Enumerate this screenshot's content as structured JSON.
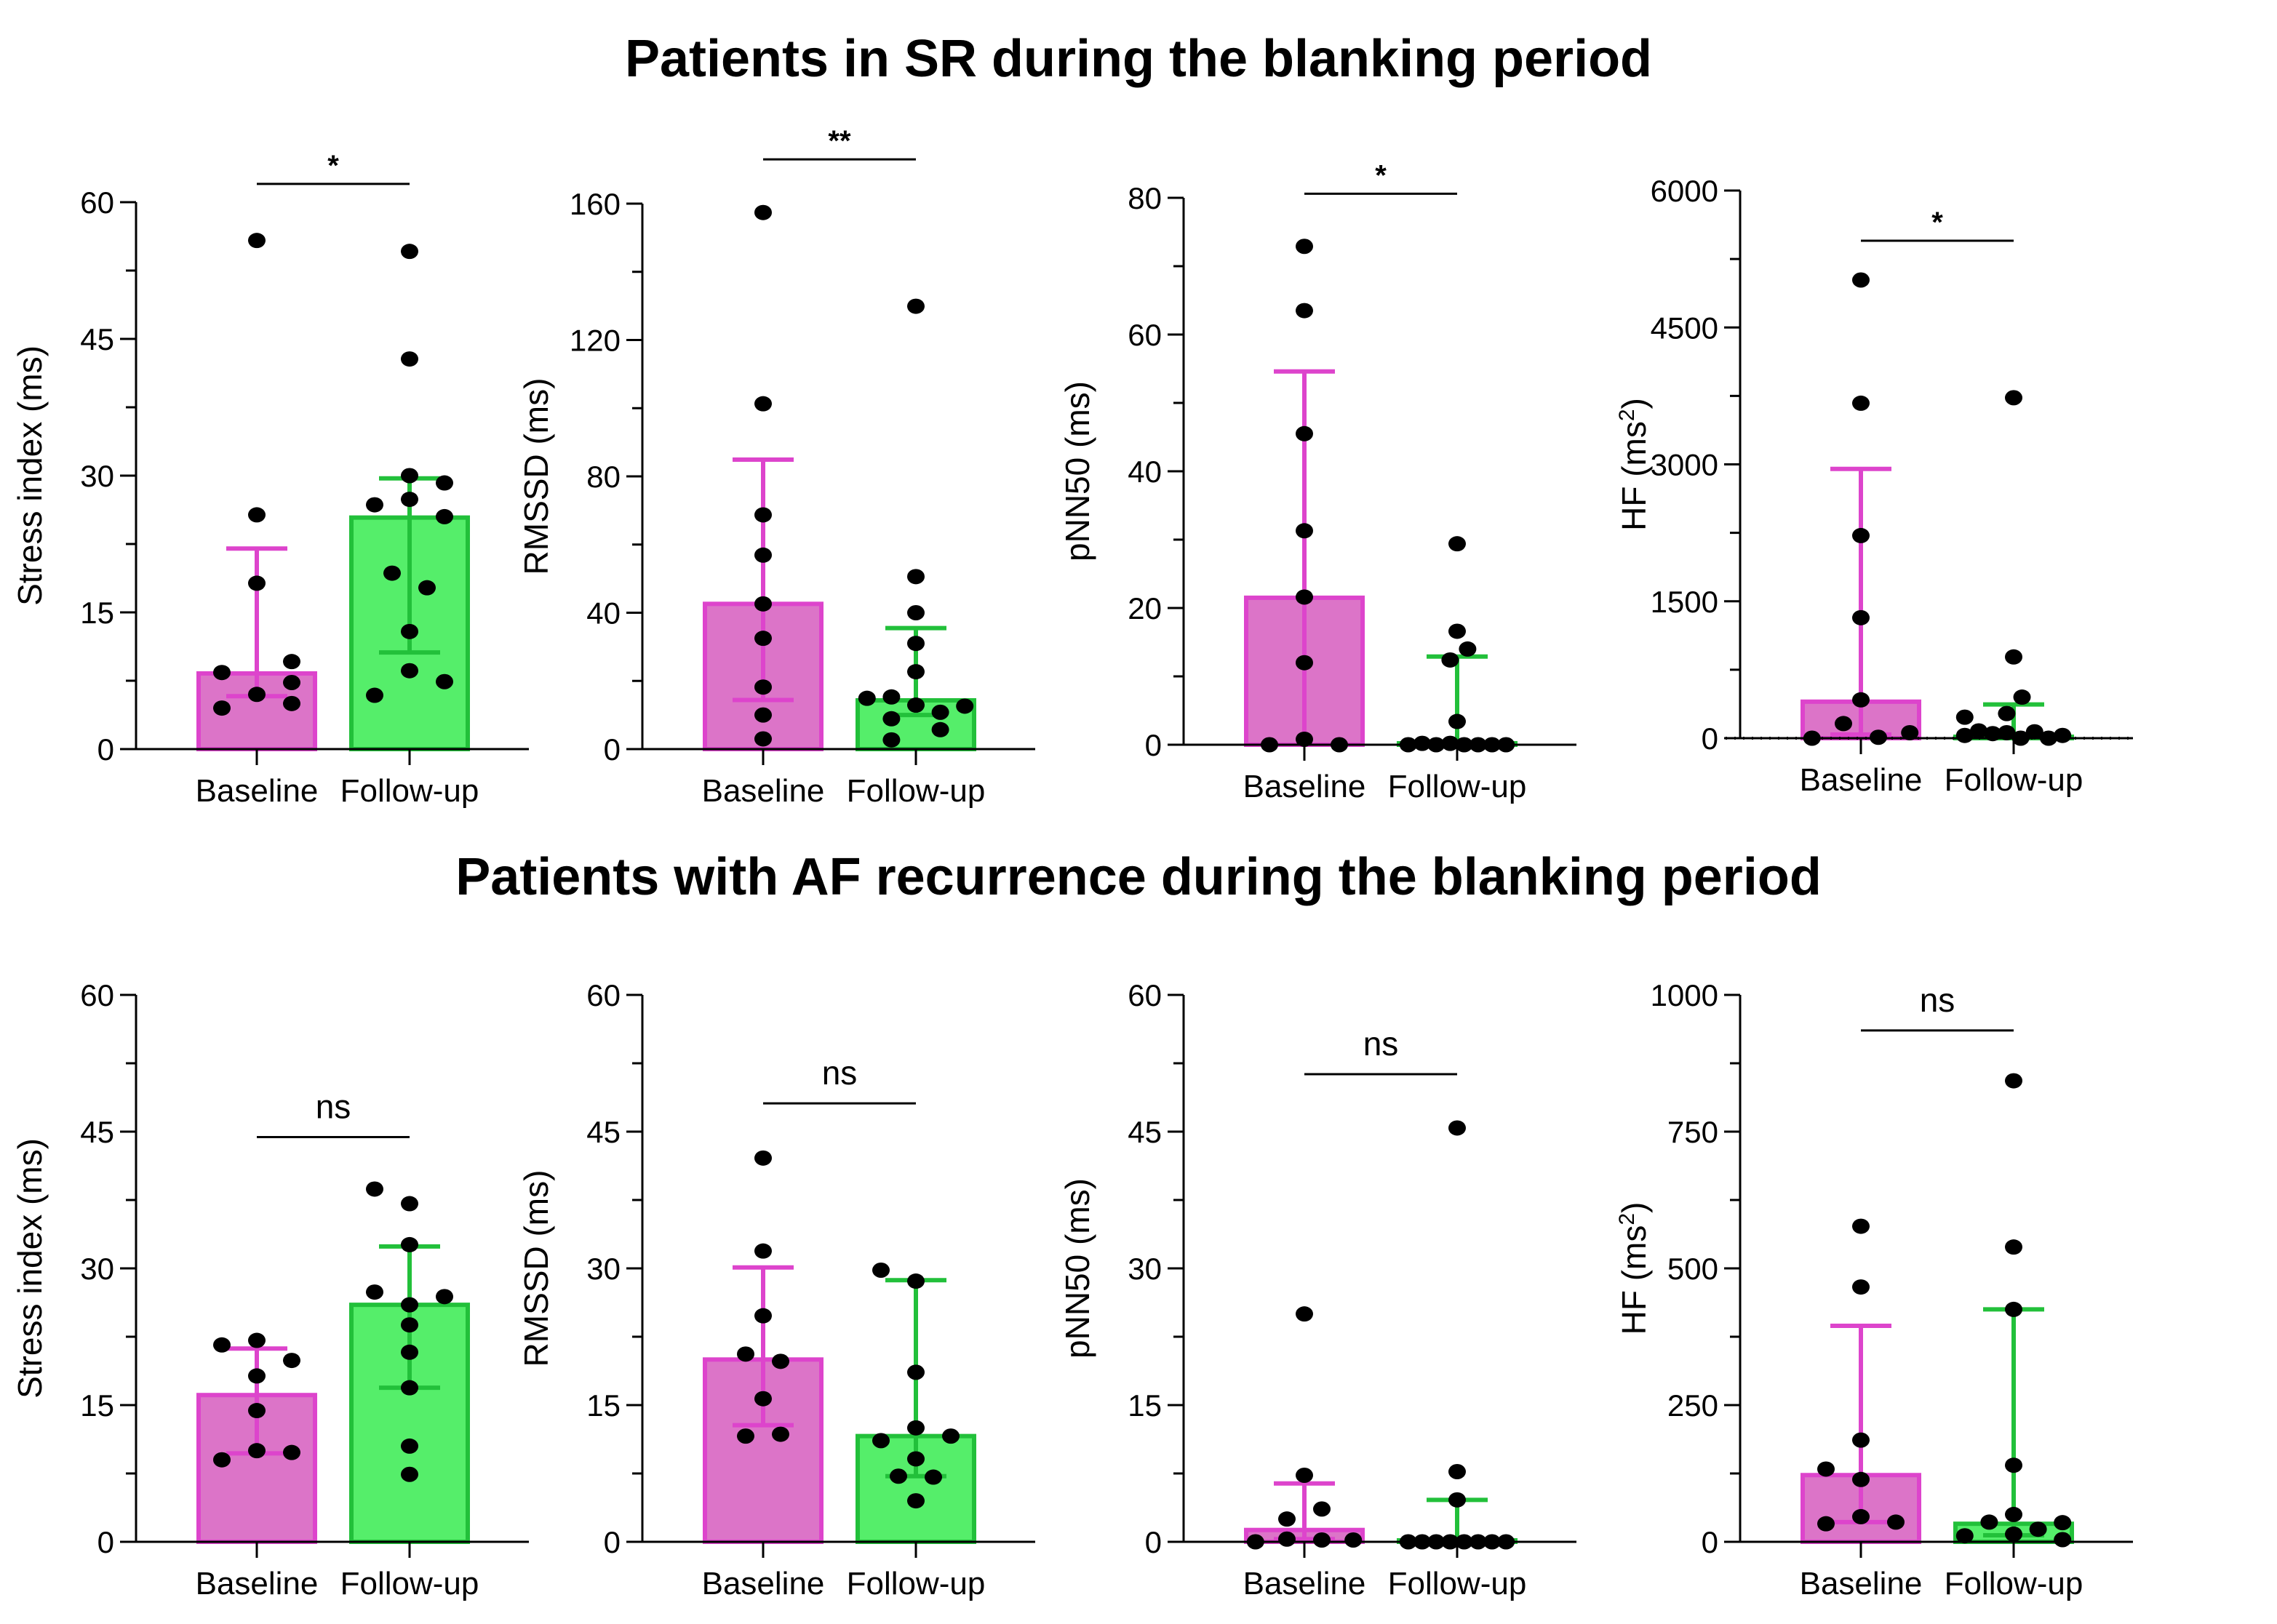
{
  "figure": {
    "row_titles": [
      "Patients in SR during the blanking period",
      "Patients with AF recurrence during the blanking period"
    ],
    "colors": {
      "baseline_fill": "#DC74C8",
      "baseline_stroke": "#DD44CC",
      "followup_fill": "#55EE6A",
      "followup_stroke": "#22C03A",
      "point": "#000000"
    }
  },
  "chart_data": [
    {
      "type": "bar",
      "row": 0,
      "title": "Patients in SR during the blanking period",
      "categories": [
        "Baseline",
        "Follow-up"
      ],
      "ylabel": "Stress index (ms)",
      "ylabel_sup": "",
      "ylim": [
        0,
        60
      ],
      "yticks": [
        0,
        15,
        30,
        45,
        60
      ],
      "minor_step": 7.5,
      "grid": false,
      "significance": "*",
      "sig_y": 62,
      "series": [
        {
          "name": "Baseline",
          "bar": 8.3,
          "err_low": 5.8,
          "err_high": 22.0,
          "points": [
            [
              0,
              55.8
            ],
            [
              0,
              25.7
            ],
            [
              0,
              18.2
            ],
            [
              -0.5,
              8.4
            ],
            [
              0.5,
              9.6
            ],
            [
              -0.5,
              4.5
            ],
            [
              0,
              6.0
            ],
            [
              0.5,
              7.3
            ],
            [
              0.5,
              5.0
            ]
          ]
        },
        {
          "name": "Follow-up",
          "bar": 25.4,
          "err_low": 10.6,
          "err_high": 29.7,
          "points": [
            [
              0,
              54.6
            ],
            [
              0,
              42.8
            ],
            [
              0,
              30.0
            ],
            [
              0.5,
              29.2
            ],
            [
              -0.5,
              26.8
            ],
            [
              0,
              27.4
            ],
            [
              0.5,
              25.5
            ],
            [
              -0.25,
              19.3
            ],
            [
              0.25,
              17.7
            ],
            [
              0,
              12.9
            ],
            [
              0,
              8.6
            ],
            [
              0.5,
              7.4
            ],
            [
              -0.5,
              5.9
            ]
          ]
        }
      ]
    },
    {
      "type": "bar",
      "row": 0,
      "title": "Patients in SR during the blanking period",
      "categories": [
        "Baseline",
        "Follow-up"
      ],
      "ylabel": "RMSSD (ms)",
      "ylabel_sup": "",
      "ylim": [
        0,
        160
      ],
      "yticks": [
        0,
        40,
        80,
        120,
        160
      ],
      "minor_step": 20,
      "grid": false,
      "significance": "**",
      "sig_y": 173,
      "series": [
        {
          "name": "Baseline",
          "bar": 42.6,
          "err_low": 14.4,
          "err_high": 84.9,
          "points": [
            [
              0,
              157.4
            ],
            [
              0,
              101.3
            ],
            [
              0,
              68.7
            ],
            [
              0,
              56.9
            ],
            [
              0,
              42.6
            ],
            [
              0,
              32.5
            ],
            [
              0,
              18.2
            ],
            [
              0,
              10.0
            ],
            [
              0,
              3.0
            ]
          ]
        },
        {
          "name": "Follow-up",
          "bar": 14.3,
          "err_low": 10.0,
          "err_high": 35.5,
          "points": [
            [
              0,
              129.9
            ],
            [
              0,
              50.6
            ],
            [
              0,
              40.0
            ],
            [
              0,
              31.0
            ],
            [
              0,
              22.7
            ],
            [
              -0.7,
              14.9
            ],
            [
              -0.35,
              15.3
            ],
            [
              0,
              12.9
            ],
            [
              0.35,
              10.8
            ],
            [
              0.7,
              12.6
            ],
            [
              -0.35,
              8.9
            ],
            [
              0.35,
              5.7
            ],
            [
              -0.35,
              2.7
            ]
          ]
        }
      ]
    },
    {
      "type": "bar",
      "row": 0,
      "title": "Patients in SR during the blanking period",
      "categories": [
        "Baseline",
        "Follow-up"
      ],
      "ylabel": "pNN50 (ms)",
      "ylabel_sup": "",
      "ylim": [
        0,
        80
      ],
      "yticks": [
        0,
        20,
        40,
        60,
        80
      ],
      "minor_step": 10,
      "grid": false,
      "significance": "*",
      "sig_y": 80.6,
      "series": [
        {
          "name": "Baseline",
          "bar": 21.5,
          "err_low": 0.0,
          "err_high": 54.6,
          "points": [
            [
              0,
              72.9
            ],
            [
              0,
              63.5
            ],
            [
              0,
              45.5
            ],
            [
              0,
              31.3
            ],
            [
              0,
              21.6
            ],
            [
              0,
              12.0
            ],
            [
              0,
              0.8
            ],
            [
              -0.5,
              0.0
            ],
            [
              0.5,
              0.0
            ]
          ]
        },
        {
          "name": "Follow-up",
          "bar": 0.0,
          "err_low": 0.0,
          "err_high": 12.9,
          "points": [
            [
              0,
              29.4
            ],
            [
              0,
              16.6
            ],
            [
              0.15,
              14.0
            ],
            [
              -0.1,
              12.4
            ],
            [
              0,
              3.4
            ],
            [
              -0.7,
              0.0
            ],
            [
              -0.5,
              0.2
            ],
            [
              -0.3,
              0.0
            ],
            [
              -0.1,
              0.2
            ],
            [
              0.1,
              0.0
            ],
            [
              0.3,
              0.0
            ],
            [
              0.5,
              0.0
            ],
            [
              0.7,
              0.0
            ]
          ]
        }
      ]
    },
    {
      "type": "bar",
      "row": 0,
      "title": "Patients in SR during the blanking period",
      "categories": [
        "Baseline",
        "Follow-up"
      ],
      "ylabel": "HF (ms",
      "ylabel_sup": "2",
      "ylabel_tail": ")",
      "ylim": [
        0,
        6000
      ],
      "yticks": [
        0,
        1500,
        3000,
        4500,
        6000
      ],
      "minor_step": 750,
      "grid": false,
      "zero_dotted": true,
      "significance": "*",
      "sig_y": 5450,
      "series": [
        {
          "name": "Baseline",
          "bar": 400,
          "err_low": 40,
          "err_high": 2950,
          "points": [
            [
              0,
              5020
            ],
            [
              0,
              3670
            ],
            [
              0,
              2220
            ],
            [
              0,
              1320
            ],
            [
              0,
              420
            ],
            [
              -0.25,
              160
            ],
            [
              -0.7,
              0
            ],
            [
              0.25,
              10
            ],
            [
              0.7,
              60
            ]
          ]
        },
        {
          "name": "Follow-up",
          "bar": 0,
          "err_low": 0,
          "err_high": 370,
          "points": [
            [
              0,
              3730
            ],
            [
              0,
              890
            ],
            [
              0.12,
              450
            ],
            [
              -0.1,
              270
            ],
            [
              -0.7,
              230
            ],
            [
              -0.7,
              30
            ],
            [
              -0.5,
              80
            ],
            [
              -0.3,
              50
            ],
            [
              -0.1,
              60
            ],
            [
              0.1,
              0
            ],
            [
              0.3,
              70
            ],
            [
              0.5,
              0
            ],
            [
              0.7,
              30
            ]
          ]
        }
      ]
    },
    {
      "type": "bar",
      "row": 1,
      "title": "Patients with AF recurrence during the blanking period",
      "categories": [
        "Baseline",
        "Follow-up"
      ],
      "ylabel": "Stress index (ms)",
      "ylabel_sup": "",
      "ylim": [
        0,
        60
      ],
      "yticks": [
        0,
        15,
        30,
        45,
        60
      ],
      "minor_step": 7.5,
      "grid": false,
      "significance": "ns",
      "sig_y": 44.4,
      "series": [
        {
          "name": "Baseline",
          "bar": 16.1,
          "err_low": 9.7,
          "err_high": 21.2,
          "points": [
            [
              -0.5,
              21.6
            ],
            [
              0,
              22.1
            ],
            [
              0.5,
              19.9
            ],
            [
              0,
              18.2
            ],
            [
              0,
              14.4
            ],
            [
              -0.5,
              9.0
            ],
            [
              0,
              10.0
            ],
            [
              0.5,
              9.8
            ]
          ]
        },
        {
          "name": "Follow-up",
          "bar": 26.0,
          "err_low": 16.9,
          "err_high": 32.4,
          "points": [
            [
              -0.5,
              38.7
            ],
            [
              0,
              37.1
            ],
            [
              0,
              32.6
            ],
            [
              -0.5,
              27.4
            ],
            [
              0,
              26.0
            ],
            [
              0.5,
              26.9
            ],
            [
              0,
              23.8
            ],
            [
              0,
              20.8
            ],
            [
              0,
              16.9
            ],
            [
              0,
              10.5
            ],
            [
              0,
              7.4
            ]
          ]
        }
      ]
    },
    {
      "type": "bar",
      "row": 1,
      "title": "Patients with AF recurrence during the blanking period",
      "categories": [
        "Baseline",
        "Follow-up"
      ],
      "ylabel": "RMSSD (ms)",
      "ylabel_sup": "",
      "ylim": [
        0,
        60
      ],
      "yticks": [
        0,
        15,
        30,
        45,
        60
      ],
      "minor_step": 7.5,
      "grid": false,
      "significance": "ns",
      "sig_y": 48.1,
      "series": [
        {
          "name": "Baseline",
          "bar": 20.0,
          "err_low": 12.8,
          "err_high": 30.1,
          "points": [
            [
              0,
              42.1
            ],
            [
              0,
              31.9
            ],
            [
              0,
              24.8
            ],
            [
              -0.25,
              20.6
            ],
            [
              0.25,
              19.8
            ],
            [
              0,
              15.7
            ],
            [
              -0.25,
              11.6
            ],
            [
              0.25,
              11.8
            ]
          ]
        },
        {
          "name": "Follow-up",
          "bar": 11.6,
          "err_low": 7.2,
          "err_high": 28.7,
          "points": [
            [
              -0.5,
              29.8
            ],
            [
              0,
              28.6
            ],
            [
              0,
              18.6
            ],
            [
              0,
              12.5
            ],
            [
              -0.5,
              11.1
            ],
            [
              0.5,
              11.6
            ],
            [
              0,
              9.1
            ],
            [
              -0.25,
              7.2
            ],
            [
              0.25,
              7.1
            ],
            [
              0,
              4.5
            ]
          ]
        }
      ]
    },
    {
      "type": "bar",
      "row": 1,
      "title": "Patients with AF recurrence during the blanking period",
      "categories": [
        "Baseline",
        "Follow-up"
      ],
      "ylabel": "pNN50 (ms)",
      "ylabel_sup": "",
      "ylim": [
        0,
        60
      ],
      "yticks": [
        0,
        15,
        30,
        45,
        60
      ],
      "minor_step": 7.5,
      "grid": false,
      "significance": "ns",
      "sig_y": 51.3,
      "series": [
        {
          "name": "Baseline",
          "bar": 1.3,
          "err_low": 0.3,
          "err_high": 6.4,
          "points": [
            [
              0,
              25.0
            ],
            [
              0,
              7.3
            ],
            [
              0.25,
              3.6
            ],
            [
              -0.25,
              2.5
            ],
            [
              -0.7,
              0.0
            ],
            [
              -0.25,
              0.3
            ],
            [
              0.25,
              0.2
            ],
            [
              0.7,
              0.2
            ]
          ]
        },
        {
          "name": "Follow-up",
          "bar": 0.0,
          "err_low": 0.0,
          "err_high": 4.6,
          "points": [
            [
              0,
              45.4
            ],
            [
              0,
              7.7
            ],
            [
              0,
              4.6
            ],
            [
              -0.7,
              0.0
            ],
            [
              -0.5,
              0.0
            ],
            [
              -0.3,
              0.0
            ],
            [
              -0.1,
              0.0
            ],
            [
              0.1,
              0.0
            ],
            [
              0.3,
              0.0
            ],
            [
              0.5,
              0.0
            ],
            [
              0.7,
              0.0
            ]
          ]
        }
      ]
    },
    {
      "type": "bar",
      "row": 1,
      "title": "Patients with AF recurrence during the blanking period",
      "categories": [
        "Baseline",
        "Follow-up"
      ],
      "ylabel": "HF (ms",
      "ylabel_sup": "2",
      "ylabel_tail": ")",
      "ylim": [
        0,
        1000
      ],
      "yticks": [
        0,
        250,
        500,
        750,
        1000
      ],
      "minor_step": 125,
      "grid": false,
      "significance": "ns",
      "sig_y": 935,
      "series": [
        {
          "name": "Baseline",
          "bar": 122,
          "err_low": 36,
          "err_high": 395,
          "points": [
            [
              0,
              577
            ],
            [
              0,
              466
            ],
            [
              0,
              186
            ],
            [
              -0.5,
              133
            ],
            [
              0,
              114
            ],
            [
              -0.5,
              33
            ],
            [
              0,
              46
            ],
            [
              0.5,
              36
            ]
          ]
        },
        {
          "name": "Follow-up",
          "bar": 33,
          "err_low": 12,
          "err_high": 425,
          "points": [
            [
              0,
              843
            ],
            [
              0,
              539
            ],
            [
              0,
              425
            ],
            [
              0,
              140
            ],
            [
              0,
              50
            ],
            [
              -0.35,
              36
            ],
            [
              -0.7,
              11
            ],
            [
              0,
              14
            ],
            [
              0.35,
              23
            ],
            [
              0.7,
              35
            ],
            [
              0.7,
              4
            ]
          ]
        }
      ]
    }
  ]
}
